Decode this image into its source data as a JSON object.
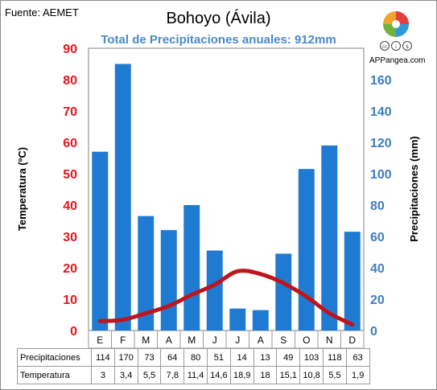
{
  "header": {
    "source": "Fuente: AEMET",
    "logo_text": "APPangea.com"
  },
  "chart_data": {
    "type": "bar",
    "title": "Bohoyo (Ávila)",
    "subtitle": "Total de Precipitaciones anuales: 912mm",
    "categories": [
      "E",
      "F",
      "M",
      "A",
      "M",
      "J",
      "J",
      "A",
      "S",
      "O",
      "N",
      "D"
    ],
    "ylabel_left": "Temperatura (ºC)",
    "ylabel_right": "Precipitaciones (mm)",
    "ylim_left": [
      0,
      90
    ],
    "yticks_left": [
      "0",
      "10",
      "20",
      "30",
      "40",
      "50",
      "60",
      "70",
      "80",
      "90"
    ],
    "ylim_right": [
      0,
      180
    ],
    "yticks_right": [
      "0",
      "20",
      "40",
      "60",
      "80",
      "100",
      "120",
      "140",
      "160"
    ],
    "grid": false,
    "series": [
      {
        "name": "Precipitaciones",
        "type": "bar",
        "axis": "right",
        "values": [
          114,
          170,
          73,
          64,
          80,
          51,
          14,
          13,
          49,
          103,
          118,
          63
        ],
        "labels": [
          "114",
          "170",
          "73",
          "64",
          "80",
          "51",
          "14",
          "13",
          "49",
          "103",
          "118",
          "63"
        ]
      },
      {
        "name": "Temperatura",
        "type": "line",
        "axis": "left",
        "values": [
          3,
          3.4,
          5.5,
          7.8,
          11.4,
          14.6,
          18.9,
          18,
          15.1,
          10.8,
          5.5,
          1.9
        ],
        "labels": [
          "3",
          "3,4",
          "5,5",
          "7,8",
          "11,4",
          "14,6",
          "18,9",
          "18",
          "15,1",
          "10,8",
          "5,5",
          "1,9"
        ]
      }
    ],
    "colors": {
      "bar": "#1f7ad1",
      "line": "#c0141c",
      "left_axis_text": "#e8141c",
      "right_axis_text": "#3f7dbf",
      "subtitle": "#4a8ac9"
    }
  },
  "logo": {
    "icon": "appangea-puzzle-globe-icon",
    "license_icons": [
      "cc-icon",
      "by-icon",
      "nc-icon"
    ]
  }
}
